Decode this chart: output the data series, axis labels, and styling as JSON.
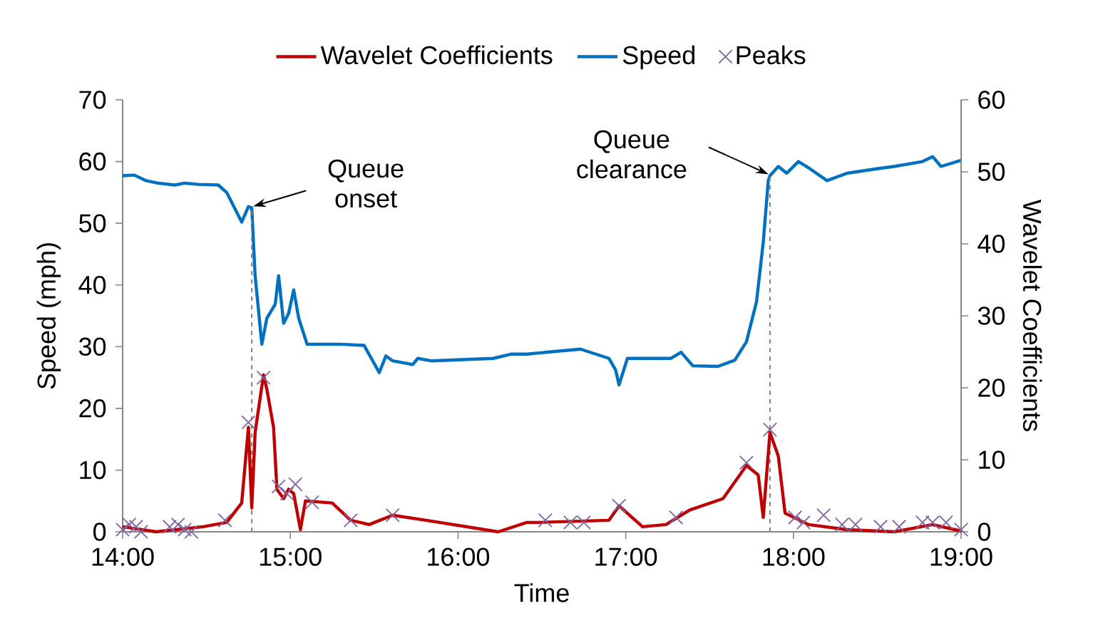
{
  "chart_data": {
    "type": "line",
    "xlabel": "Time",
    "ylabel": "Speed (mph)",
    "y2label": "Wavelet Coefficients",
    "xlim": [
      14,
      19
    ],
    "xticks": [
      {
        "value": 14,
        "label": "14:00"
      },
      {
        "value": 15,
        "label": "15:00"
      },
      {
        "value": 16,
        "label": "16:00"
      },
      {
        "value": 17,
        "label": "17:00"
      },
      {
        "value": 18,
        "label": "18:00"
      },
      {
        "value": 19,
        "label": "19:00"
      }
    ],
    "ylim": [
      0,
      70
    ],
    "yticks": [
      0,
      10,
      20,
      30,
      40,
      50,
      60,
      70
    ],
    "y2lim": [
      0,
      60
    ],
    "y2ticks": [
      0,
      10,
      20,
      30,
      40,
      50,
      60
    ],
    "grid": false,
    "legend": "top",
    "series": [
      {
        "name": "Wavelet Coefficients",
        "axis": "y2",
        "color": "#c00000",
        "x": [
          14.0,
          14.2,
          14.48,
          14.62,
          14.71,
          14.75,
          14.77,
          14.79,
          14.84,
          14.86,
          14.9,
          14.92,
          14.96,
          14.99,
          15.02,
          15.06,
          15.09,
          15.25,
          15.36,
          15.47,
          15.61,
          15.81,
          16.24,
          16.41,
          16.48,
          16.9,
          16.96,
          17.1,
          17.24,
          17.38,
          17.58,
          17.72,
          17.79,
          17.82,
          17.86,
          17.91,
          17.95,
          18.09,
          18.32,
          18.6,
          18.83,
          19.0
        ],
        "values": [
          0.7,
          0,
          0.7,
          1.3,
          4.0,
          14.5,
          3.3,
          13.8,
          21.8,
          19.8,
          14.5,
          5.9,
          4.6,
          5.9,
          5.3,
          0.3,
          4.3,
          4.0,
          1.6,
          1.0,
          2.3,
          1.6,
          0,
          1.3,
          1.3,
          1.6,
          3.6,
          0.7,
          1.0,
          3.0,
          4.6,
          9.2,
          7.9,
          2.0,
          13.8,
          10.5,
          2.6,
          1.0,
          0.3,
          0,
          1.0,
          0.1
        ]
      },
      {
        "name": "Speed",
        "axis": "y",
        "color": "#0070c0",
        "x": [
          14.0,
          14.07,
          14.14,
          14.21,
          14.31,
          14.37,
          14.45,
          14.57,
          14.62,
          14.71,
          14.75,
          14.77,
          14.79,
          14.83,
          14.86,
          14.91,
          14.93,
          14.96,
          14.99,
          15.02,
          15.05,
          15.1,
          15.3,
          15.44,
          15.53,
          15.57,
          15.61,
          15.73,
          15.76,
          15.84,
          16.21,
          16.32,
          16.41,
          16.73,
          16.9,
          16.94,
          16.96,
          17.01,
          17.27,
          17.33,
          17.4,
          17.55,
          17.65,
          17.72,
          17.78,
          17.82,
          17.85,
          17.86,
          17.91,
          17.96,
          18.03,
          18.1,
          18.2,
          18.32,
          18.49,
          18.6,
          18.77,
          18.83,
          18.88,
          19.0
        ],
        "values": [
          57.7,
          57.8,
          56.9,
          56.5,
          56.2,
          56.5,
          56.3,
          56.2,
          55.0,
          50.2,
          52.7,
          52.5,
          41.5,
          30.4,
          34.6,
          36.9,
          41.5,
          33.8,
          35.4,
          39.2,
          34.6,
          30.4,
          30.4,
          30.2,
          25.8,
          28.5,
          27.7,
          27.1,
          28.1,
          27.7,
          28.1,
          28.8,
          28.8,
          29.6,
          28.1,
          26.2,
          23.8,
          28.1,
          28.1,
          29.1,
          26.9,
          26.8,
          27.8,
          30.8,
          37.3,
          46.9,
          56.9,
          57.7,
          59.2,
          58.1,
          60.0,
          58.8,
          56.9,
          58.1,
          58.8,
          59.2,
          60.0,
          60.8,
          59.2,
          60.2
        ]
      },
      {
        "name": "Peaks",
        "type": "scatter",
        "axis": "y2",
        "color": "#8064a2",
        "marker": "cross",
        "x": [
          14.0,
          14.04,
          14.08,
          14.11,
          14.28,
          14.33,
          14.37,
          14.41,
          14.61,
          14.75,
          14.84,
          14.93,
          14.98,
          15.03,
          15.13,
          15.36,
          15.61,
          16.52,
          16.67,
          16.75,
          16.96,
          17.3,
          17.72,
          17.86,
          18.01,
          18.06,
          18.18,
          18.29,
          18.37,
          18.52,
          18.63,
          18.77,
          18.83,
          18.91,
          19.0
        ],
        "values": [
          0.3,
          1.0,
          0.7,
          0,
          0.7,
          1.0,
          0.3,
          0,
          1.6,
          15.2,
          21.4,
          6.3,
          5.3,
          6.6,
          4.1,
          1.6,
          2.3,
          1.6,
          1.3,
          1.3,
          3.6,
          2.0,
          9.6,
          14.2,
          2.0,
          1.3,
          2.3,
          1.0,
          1.0,
          0.7,
          0.7,
          1.3,
          1.3,
          1.3,
          0.3
        ]
      }
    ],
    "ref_lines": [
      {
        "axis": "x",
        "value": 14.77,
        "color": "#808080",
        "line_style": "dashed"
      },
      {
        "axis": "x",
        "value": 17.86,
        "color": "#808080",
        "line_style": "dashed"
      }
    ],
    "annotations": [
      {
        "text": "Queue onset",
        "x": 14.77,
        "y": 52.5
      },
      {
        "text": "Queue clearance",
        "x": 17.86,
        "y": 57.7
      }
    ]
  }
}
